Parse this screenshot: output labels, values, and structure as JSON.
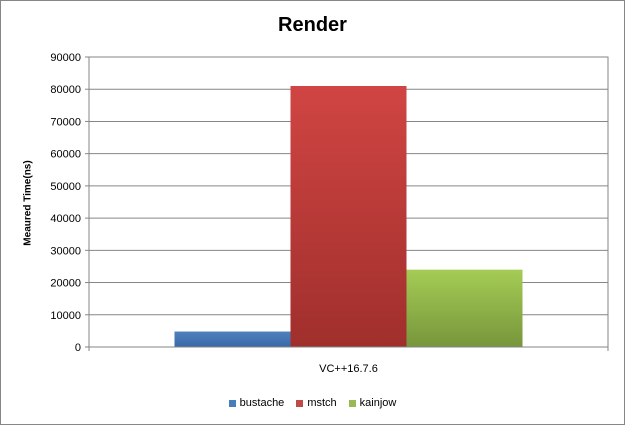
{
  "chart_data": {
    "type": "bar",
    "title": "Render",
    "xlabel": "",
    "ylabel": "Meaured Time(ns)",
    "categories": [
      "VC++16.7.6"
    ],
    "series": [
      {
        "name": "bustache",
        "values": [
          4800
        ],
        "color": "#4a7ebb"
      },
      {
        "name": "mstch",
        "values": [
          81000
        ],
        "color": "#be4b48"
      },
      {
        "name": "kainjow",
        "values": [
          24000
        ],
        "color": "#98b954"
      }
    ],
    "ylim": [
      0,
      90000
    ],
    "yticks": [
      "0",
      "10000",
      "20000",
      "30000",
      "40000",
      "50000",
      "60000",
      "70000",
      "80000",
      "90000"
    ],
    "grid": true,
    "legend": "bottom"
  }
}
